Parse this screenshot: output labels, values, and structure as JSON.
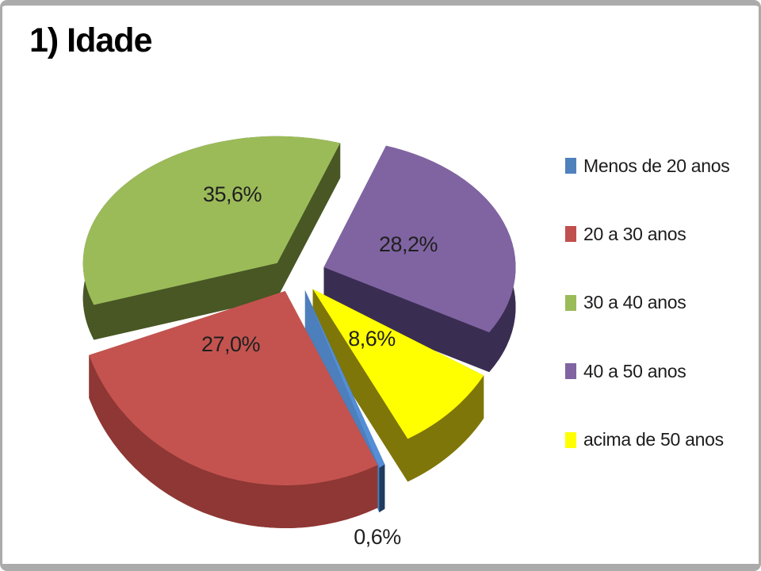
{
  "slide": {
    "title": "1) Idade"
  },
  "chart_data": {
    "type": "pie",
    "style": "3d-exploded",
    "title": "1) Idade",
    "categories": [
      "Menos de 20 anos",
      "20 a 30 anos",
      "30 a 40 anos",
      "40 a 50 anos",
      "acima de 50 anos"
    ],
    "values": [
      0.6,
      27.0,
      35.6,
      28.2,
      8.6
    ],
    "value_labels": [
      "0,6%",
      "27,0%",
      "35,6%",
      "28,2%",
      "8,6%"
    ],
    "legend_position": "right",
    "label_color": "#1f1f1f",
    "colors": {
      "legend": [
        "#4F81BD",
        "#C0504D",
        "#9BBB59",
        "#8064A2",
        "#FFFF00"
      ],
      "top": [
        "#558ED5",
        "#C4534F",
        "#9BBB59",
        "#8064A2",
        "#FFFF00"
      ],
      "side": [
        "#1F3B5E",
        "#8E3734",
        "#485724",
        "#3A2D52",
        "#7E7608"
      ],
      "side_alt": [
        "#4C7FBC",
        "#8E3734",
        "#485724",
        "#3A2D52",
        "#7E7608"
      ]
    }
  },
  "frame": {
    "border_color": "#ABABAB"
  }
}
